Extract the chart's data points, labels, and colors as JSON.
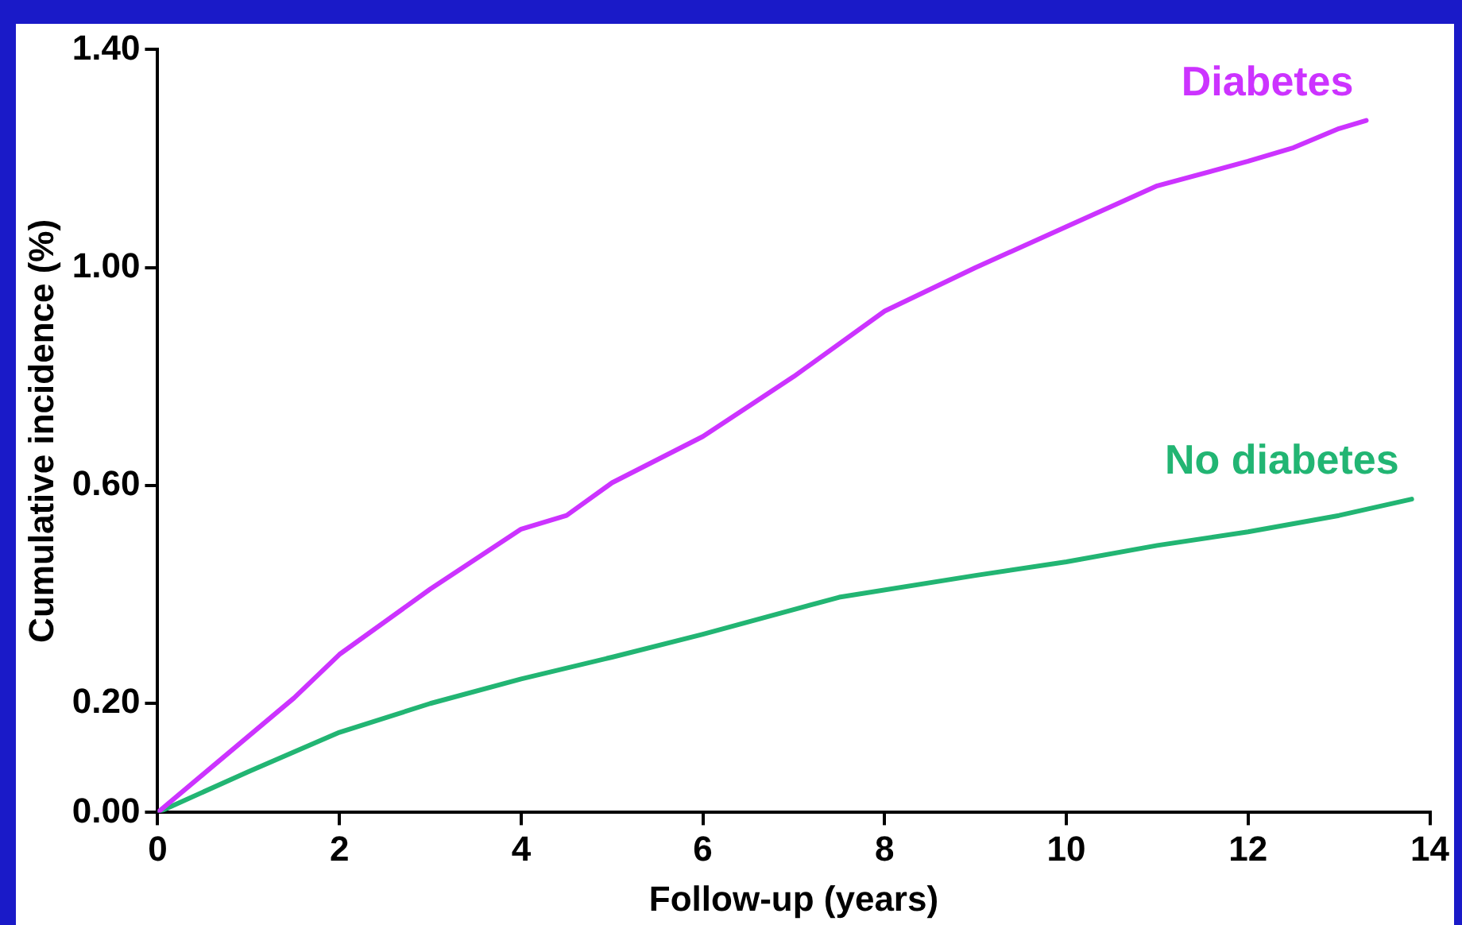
{
  "chart_data": {
    "type": "line",
    "xlabel": "Follow-up (years)",
    "ylabel": "Cumulative incidence (%)",
    "xlim": [
      0,
      14
    ],
    "xticks": [
      0,
      2,
      4,
      6,
      8,
      10,
      12,
      14
    ],
    "ylim": [
      0,
      1.4
    ],
    "yticks": [
      {
        "value": 0,
        "label": "0.00"
      },
      {
        "value": 0.2,
        "label": "0.20"
      },
      {
        "value": 0.6,
        "label": "0.60"
      },
      {
        "value": 1,
        "label": "1.00"
      },
      {
        "value": 1.4,
        "label": "1.40"
      }
    ],
    "grid": false,
    "legend": false,
    "marker": "none",
    "line_style": "solid",
    "series": [
      {
        "name": "Diabetes",
        "color": "#cc33ff",
        "x": [
          0,
          0.5,
          1,
          1.5,
          2,
          3,
          4,
          4.5,
          5,
          6,
          7,
          8,
          9,
          10,
          11,
          12,
          12.5,
          13,
          13.3
        ],
        "values": [
          0,
          0.07,
          0.14,
          0.21,
          0.29,
          0.41,
          0.52,
          0.545,
          0.605,
          0.69,
          0.8,
          0.92,
          1.0,
          1.075,
          1.15,
          1.195,
          1.22,
          1.255,
          1.27
        ]
      },
      {
        "name": "No diabetes",
        "color": "#22b573",
        "x": [
          0,
          1,
          2,
          3,
          4,
          5,
          6,
          7.5,
          9,
          10,
          11,
          12,
          13,
          13.8
        ],
        "values": [
          0,
          0.075,
          0.147,
          0.2,
          0.245,
          0.285,
          0.327,
          0.395,
          0.435,
          0.46,
          0.49,
          0.515,
          0.545,
          0.575
        ]
      }
    ]
  }
}
